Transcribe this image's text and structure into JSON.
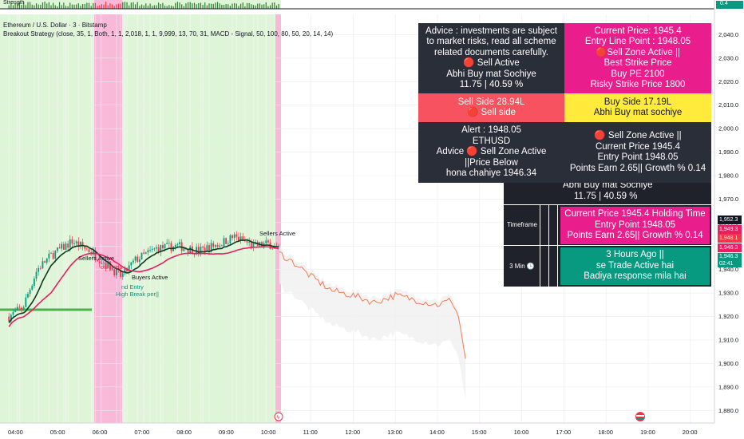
{
  "header": {
    "title": "Ethereum / U.S. Dollar · 3 · Bitstamp",
    "indicator": "Breakout Strategy (close, 35, 1, Both, 1, 1, 2,018, 1, 1, 9,999, 13, 70, 31, MACD - Signal, 50, 100, 80, 50, 20, 14, 14)",
    "subpane_label": "Strength",
    "subpane_value": "0.4"
  },
  "price_labels": {
    "last": "1,952.3",
    "l2": "1,949.3",
    "l3": "1,948.1",
    "l4": "1,946.3",
    "l5": "1,946.3",
    "countdown": "02:41"
  },
  "panels": {
    "advice": [
      "Advice : investments are subject",
      "to market risks, read all scheme",
      "related documents carefully.",
      "🔴 Sell Active",
      "Abhi Buy mat Sochiye",
      "11.75 | 40.59 %"
    ],
    "current": [
      "Current Price: 1945.4",
      "Entry Line Point : 1948.05",
      "🔴Sell Zone Active ||",
      "Best Strike Price",
      "Buy PE 2100",
      "Risky Strike Price 1800"
    ],
    "sell_side": [
      "Sell Side 28.94L",
      "🔴 Sell side"
    ],
    "buy_side": [
      "Buy Side 17.19L",
      "Abhi Buy  mat sochiye"
    ],
    "alert": [
      "Alert : 1948.05",
      "ETHUSD",
      "Advice  🔴 Sell Zone Active",
      "||Price Below",
      "hona chahiye  1946.34"
    ],
    "zone": [
      "🔴 Sell Zone Active ||",
      "Current Price 1945.4",
      "Entry Point  1948.05",
      "Points Earn 2.65|| Growth % 0.14"
    ],
    "partial": [
      "Abhi Buy mat Sochiye",
      "11.75 | 40.59 %"
    ],
    "timeframe_label": "Timeframe",
    "holding": [
      "Current Price 1945.4 Holding Time",
      "Entry Point  1948.05",
      "Points Earn 2.65|| Growth % 0.14"
    ],
    "min_label": "3 Min 🕒",
    "hours": [
      "3 Hours Ago ||",
      "se Trade Active hai",
      "Badiya response mila hai"
    ]
  },
  "colors": {
    "up": "#089981",
    "down": "#f23645",
    "green_zone": "#dff5d8",
    "pink_zone": "#f8b9d9",
    "ma_dark": "#0a3d1f",
    "ma_pink": "#e91e63",
    "projection": "#f57c50"
  },
  "chart_data": {
    "type": "candlestick",
    "symbol": "ETHUSD",
    "timeframe": "3",
    "ylim": [
      1875,
      2050
    ],
    "y_ticks": [
      2040,
      2030,
      2020,
      2010,
      2000,
      1990,
      1980,
      1970,
      1960,
      1950,
      1940,
      1930,
      1920,
      1910,
      1900,
      1890,
      1880
    ],
    "x_ticks": [
      "04:00",
      "05:00",
      "06:00",
      "07:00",
      "08:00",
      "09:00",
      "10:00",
      "11:00",
      "12:00",
      "13:00",
      "14:00",
      "15:00",
      "16:00",
      "17:00",
      "18:00",
      "19:00",
      "20:00"
    ],
    "ohlc_keypoints": [
      {
        "t": "03:50",
        "c": 1920
      },
      {
        "t": "04:10",
        "c": 1924
      },
      {
        "t": "04:30",
        "c": 1940
      },
      {
        "t": "04:50",
        "c": 1946
      },
      {
        "t": "05:20",
        "c": 1952
      },
      {
        "t": "05:45",
        "c": 1948
      },
      {
        "t": "06:10",
        "c": 1942
      },
      {
        "t": "06:30",
        "c": 1937
      },
      {
        "t": "06:50",
        "c": 1944
      },
      {
        "t": "07:20",
        "c": 1949
      },
      {
        "t": "07:50",
        "c": 1950
      },
      {
        "t": "08:20",
        "c": 1948
      },
      {
        "t": "08:50",
        "c": 1951
      },
      {
        "t": "09:10",
        "c": 1954
      },
      {
        "t": "09:40",
        "c": 1950
      },
      {
        "t": "10:00",
        "c": 1951
      },
      {
        "t": "10:15",
        "c": 1948
      }
    ],
    "projection": [
      {
        "t": "10:15",
        "v": 1947
      },
      {
        "t": "10:40",
        "v": 1942
      },
      {
        "t": "11:00",
        "v": 1937
      },
      {
        "t": "11:30",
        "v": 1931
      },
      {
        "t": "12:00",
        "v": 1929
      },
      {
        "t": "12:30",
        "v": 1926
      },
      {
        "t": "13:00",
        "v": 1929
      },
      {
        "t": "13:30",
        "v": 1927
      },
      {
        "t": "14:00",
        "v": 1925
      },
      {
        "t": "14:20",
        "v": 1927
      },
      {
        "t": "14:30",
        "v": 1920
      },
      {
        "t": "14:40",
        "v": 1902
      }
    ],
    "annotations": [
      "Sellers Active",
      "Sellers Active",
      "Buyers Active",
      "High Break per||",
      "nd Entry",
      "ow Brea"
    ]
  }
}
